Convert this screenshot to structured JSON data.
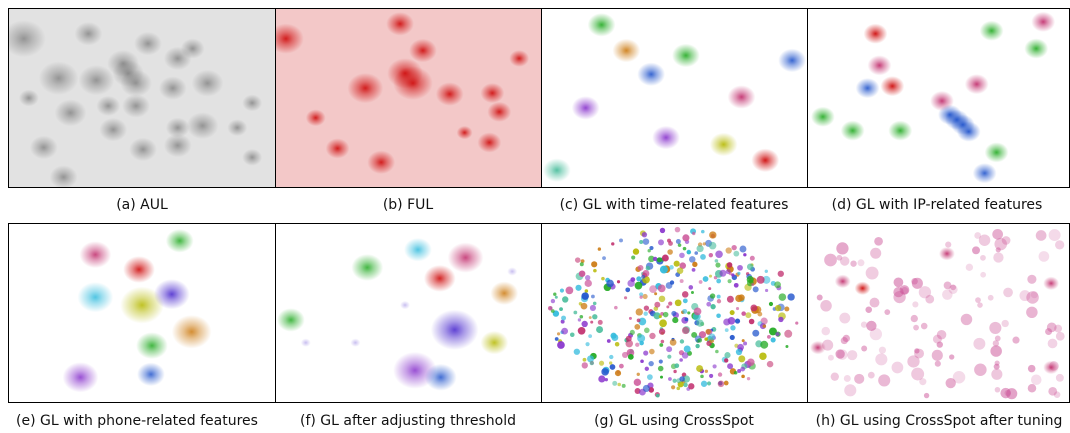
{
  "captions": [
    "(a) AUL",
    "(b) FUL",
    "(c) GL with time-related features",
    "(d) GL with IP-related features",
    "(e) GL with phone-related features",
    "(f) GL after adjusting threshold",
    "(g) GL using CrossSpot",
    "(h)  GL using CrossSpot after tuning"
  ],
  "colors": {
    "gray": "#555555",
    "red": "#cc0000",
    "green": "#22aa22",
    "orange": "#cc7a10",
    "blue": "#2255cc",
    "purple": "#8833cc",
    "magenta": "#c02a6a",
    "yellow": "#b5b800",
    "cyan": "#33bbdd",
    "indigo": "#4422cc",
    "pink": "#cc5599",
    "teal": "#44bb99"
  }
}
